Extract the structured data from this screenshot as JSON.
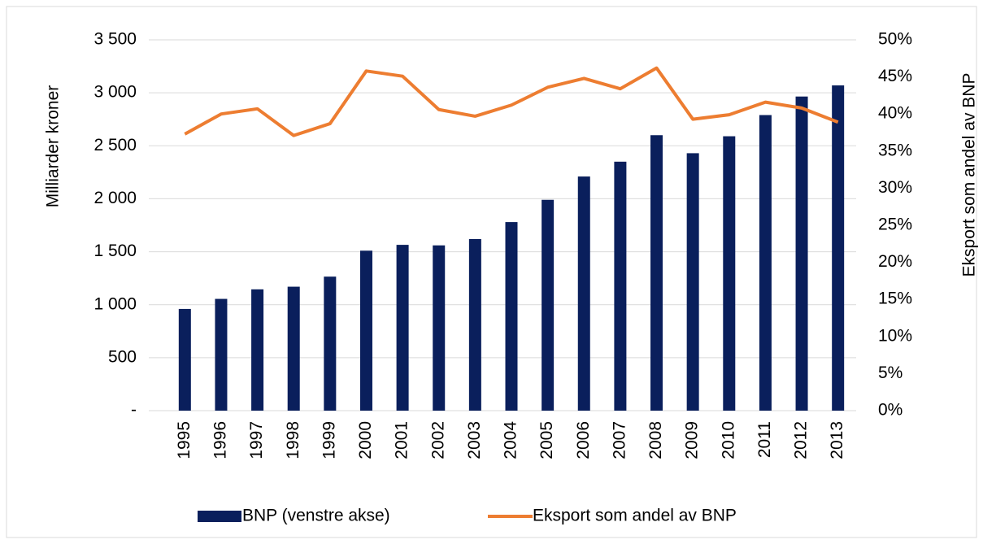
{
  "chart_data": {
    "type": "bar-line",
    "categories": [
      "1995",
      "1996",
      "1997",
      "1998",
      "1999",
      "2000",
      "2001",
      "2002",
      "2003",
      "2004",
      "2005",
      "2006",
      "2007",
      "2008",
      "2009",
      "2010",
      "2011",
      "2012",
      "2013"
    ],
    "series": [
      {
        "name": "BNP (venstre akse)",
        "type": "bar",
        "color": "#0a1f5c",
        "axis": "y",
        "values": [
          960,
          1055,
          1145,
          1170,
          1265,
          1510,
          1565,
          1560,
          1620,
          1780,
          1990,
          2210,
          2350,
          2600,
          2430,
          2590,
          2790,
          2965,
          3070
        ]
      },
      {
        "name": "Eksport som andel av BNP",
        "type": "line",
        "color": "#ed7d31",
        "axis": "y2",
        "values": [
          37.3,
          40.0,
          40.7,
          37.1,
          38.7,
          45.8,
          45.1,
          40.6,
          39.7,
          41.2,
          43.6,
          44.8,
          43.4,
          46.2,
          39.3,
          39.9,
          41.6,
          40.8,
          38.9
        ]
      }
    ],
    "ylabel": "Milliarder kroner",
    "y2label": "Eksport som andel av BNP",
    "ylim": [
      0,
      3500
    ],
    "yticks": [
      {
        "value": 0,
        "label": "-"
      },
      500,
      {
        "value": 1000,
        "label": "1 000"
      },
      {
        "value": 1500,
        "label": "1 500"
      },
      {
        "value": 2000,
        "label": "2 000"
      },
      {
        "value": 2500,
        "label": "2 500"
      },
      {
        "value": 3000,
        "label": "3 000"
      },
      {
        "value": 3500,
        "label": "3 500"
      }
    ],
    "y2lim": [
      0,
      50
    ],
    "y2ticks": [
      {
        "value": 0,
        "label": "0%"
      },
      {
        "value": 5,
        "label": "5%"
      },
      {
        "value": 10,
        "label": "10%"
      },
      {
        "value": 15,
        "label": "15%"
      },
      {
        "value": 20,
        "label": "20%"
      },
      {
        "value": 25,
        "label": "25%"
      },
      {
        "value": 30,
        "label": "30%"
      },
      {
        "value": 35,
        "label": "35%"
      },
      {
        "value": 40,
        "label": "40%"
      },
      {
        "value": 45,
        "label": "45%"
      },
      {
        "value": 50,
        "label": "50%"
      }
    ],
    "grid": true,
    "legend": "bottom"
  }
}
